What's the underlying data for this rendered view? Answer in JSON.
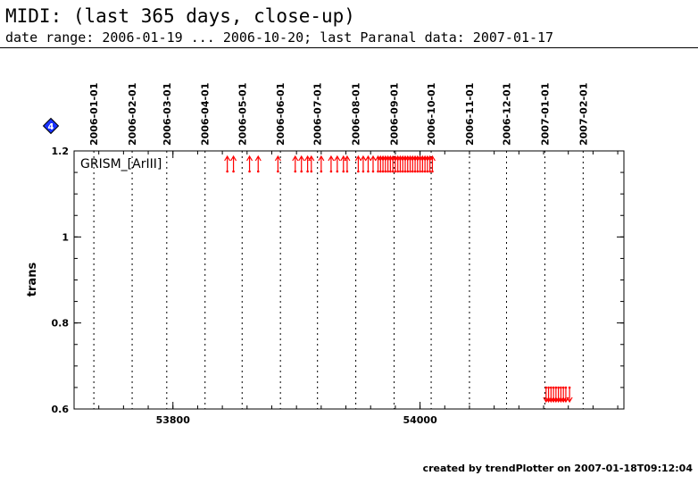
{
  "header": {
    "title": "MIDI: (last 365 days, close-up)",
    "subtitle": "date range: 2006-01-19 ... 2006-10-20; last Paranal data: 2007-01-17"
  },
  "footer": {
    "created": "created by trendPlotter on 2007-01-18T09:12:04"
  },
  "marker": {
    "label": "4",
    "color": "#1a33ff"
  },
  "chart_data": {
    "type": "scatter",
    "title": "",
    "xlabel": "",
    "ylabel": "trans",
    "panel_label": "GRISM_[ArIII]",
    "xlim": [
      53720,
      54165
    ],
    "ylim": [
      0.6,
      1.2
    ],
    "xticks": [
      53800,
      54000
    ],
    "yticks": [
      0.6,
      0.8,
      1,
      1.2
    ],
    "yticklabels": [
      "0.6",
      "0.8",
      "1",
      "1.2"
    ],
    "grid": false,
    "month_lines": {
      "mjd": [
        53736,
        53767,
        53795,
        53826,
        53856,
        53887,
        53917,
        53948,
        53979,
        54009,
        54040,
        54070,
        54101,
        54132
      ],
      "labels": [
        "2006-01-01",
        "2006-02-01",
        "2006-03-01",
        "2006-04-01",
        "2006-05-01",
        "2006-06-01",
        "2006-07-01",
        "2006-08-01",
        "2006-09-01",
        "2006-10-01",
        "2006-11-01",
        "2006-12-01",
        "2007-01-01",
        "2007-02-01"
      ]
    },
    "series": [
      {
        "color": "#ff0000",
        "marker": "up-arrow",
        "y": 1.2,
        "x": [
          53844,
          53849,
          53862,
          53869,
          53885,
          53899,
          53904,
          53909,
          53912,
          53920,
          53928,
          53933,
          53938,
          53941,
          53950,
          53954,
          53958,
          53962,
          53966,
          53968,
          53970,
          53972,
          53974,
          53976,
          53978,
          53980,
          53982,
          53984,
          53986,
          53988,
          53990,
          53992,
          53994,
          53996,
          53998,
          54000,
          54002,
          54004,
          54006,
          54008,
          54010
        ]
      },
      {
        "color": "#ff0000",
        "marker": "down-arrow",
        "y": 0.6,
        "x": [
          54102,
          54104,
          54106,
          54108,
          54110,
          54112,
          54114,
          54116,
          54118,
          54121
        ]
      }
    ]
  }
}
